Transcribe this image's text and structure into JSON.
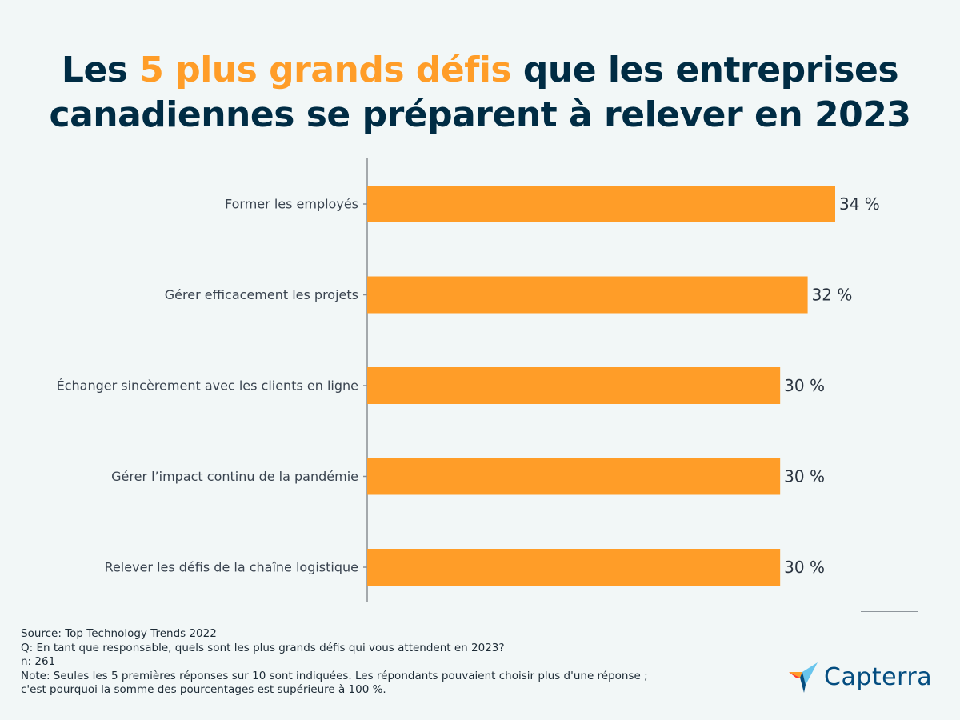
{
  "title": {
    "part1": "Les ",
    "highlight": "5 plus grands défis",
    "part2": " que les entreprises",
    "line2": "canadiennes se préparent à relever en 2023"
  },
  "chart_data": {
    "type": "bar",
    "orientation": "horizontal",
    "title": "Les 5 plus grands défis que les entreprises canadiennes se préparent à relever en 2023",
    "categories": [
      "Former les employés",
      "Gérer efficacement les projets",
      "Échanger sincèrement avec les clients en ligne",
      "Gérer l’impact continu de la pandémie",
      "Relever les défis de la chaîne logistique"
    ],
    "values": [
      34,
      32,
      30,
      30,
      30
    ],
    "value_labels": [
      "34 %",
      "32 %",
      "30 %",
      "30 %",
      "30 %"
    ],
    "xlim": [
      0,
      34
    ],
    "unit": "%",
    "bar_color": "#ff9d28",
    "grid": false
  },
  "footer": {
    "source": "Source: Top Technology Trends 2022",
    "question": "Q: En tant que responsable, quels sont les plus grands défis qui vous attendent en 2023?",
    "n": "n: 261",
    "note_line1": "Note: Seules les 5 premières réponses sur 10 sont indiquées. Les répondants pouvaient choisir plus d'une réponse ;",
    "note_line2": "c'est pourquoi la somme des pourcentages est supérieure à 100 %."
  },
  "brand": {
    "name": "Capterra",
    "colors": {
      "text": "#044d80",
      "orange": "#ff9d28",
      "blue": "#68c5ed",
      "darkblue": "#044d80",
      "red": "#ff3d2e"
    }
  },
  "colors": {
    "background": "#f2f7f7",
    "title": "#002c44",
    "accent": "#ff9d28"
  }
}
